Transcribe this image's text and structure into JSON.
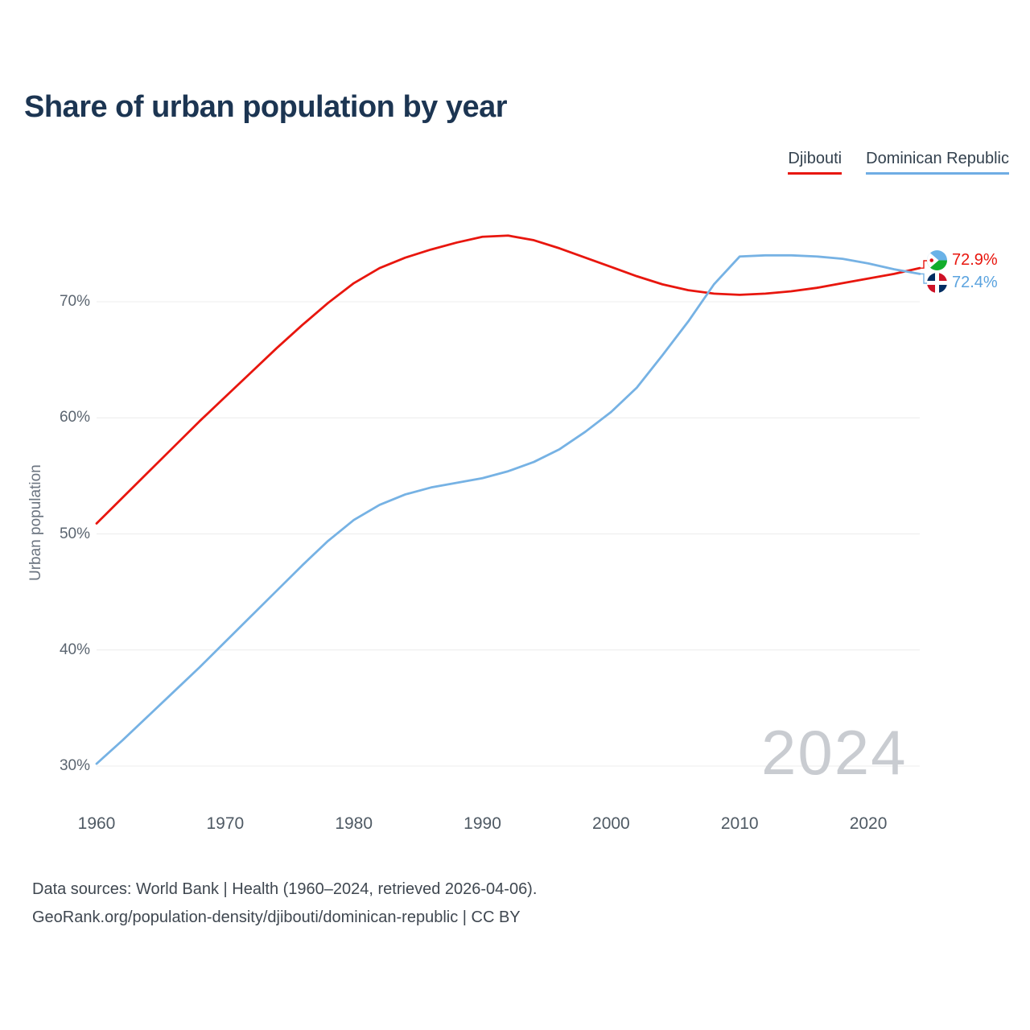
{
  "title": "Share of urban population by year",
  "legend": [
    {
      "label": "Djibouti",
      "color": "#e8160e"
    },
    {
      "label": "Dominican Republic",
      "color": "#6fade4"
    }
  ],
  "y_axis_title": "Urban population",
  "watermark": "2024",
  "end_labels": [
    {
      "series": "Djibouti",
      "value": "72.9%",
      "flag_icon": "djibouti-flag-icon",
      "color": "#e8160e"
    },
    {
      "series": "Dominican Republic",
      "value": "72.4%",
      "flag_icon": "dominican-republic-flag-icon",
      "color": "#5ba3df"
    }
  ],
  "footer": {
    "line1": "Data sources: World Bank | Health (1960–2024, retrieved 2026-04-06).",
    "line2": "GeoRank.org/population-density/djibouti/dominican-republic | CC BY"
  },
  "chart_data": {
    "type": "line",
    "title": "Share of urban population by year",
    "xlabel": "",
    "ylabel": "Urban population",
    "xlim": [
      1960,
      2024
    ],
    "ylim": [
      27,
      78
    ],
    "grid": true,
    "legend_position": "top-right",
    "xticks": [
      1960,
      1970,
      1980,
      1990,
      2000,
      2010,
      2020
    ],
    "yticks": [
      30,
      40,
      50,
      60,
      70
    ],
    "ytick_suffix": "%",
    "x": [
      1960,
      1962,
      1964,
      1966,
      1968,
      1970,
      1972,
      1974,
      1976,
      1978,
      1980,
      1982,
      1984,
      1986,
      1988,
      1990,
      1992,
      1994,
      1996,
      1998,
      2000,
      2002,
      2004,
      2006,
      2008,
      2010,
      2012,
      2014,
      2016,
      2018,
      2020,
      2022,
      2024
    ],
    "series": [
      {
        "name": "Djibouti",
        "color": "#e8160e",
        "values": [
          50.9,
          53.1,
          55.3,
          57.5,
          59.7,
          61.8,
          63.9,
          66.0,
          68.0,
          69.9,
          71.6,
          72.9,
          73.8,
          74.5,
          75.1,
          75.6,
          75.7,
          75.3,
          74.6,
          73.8,
          73.0,
          72.2,
          71.5,
          71.0,
          70.7,
          70.6,
          70.7,
          70.9,
          71.2,
          71.6,
          72.0,
          72.4,
          72.9
        ]
      },
      {
        "name": "Dominican Republic",
        "color": "#76b2e4",
        "values": [
          30.2,
          32.2,
          34.3,
          36.4,
          38.5,
          40.7,
          42.9,
          45.1,
          47.3,
          49.4,
          51.2,
          52.5,
          53.4,
          54.0,
          54.4,
          54.8,
          55.4,
          56.2,
          57.3,
          58.8,
          60.5,
          62.6,
          65.4,
          68.3,
          71.5,
          73.9,
          74.0,
          74.0,
          73.9,
          73.7,
          73.3,
          72.8,
          72.4
        ]
      }
    ]
  }
}
